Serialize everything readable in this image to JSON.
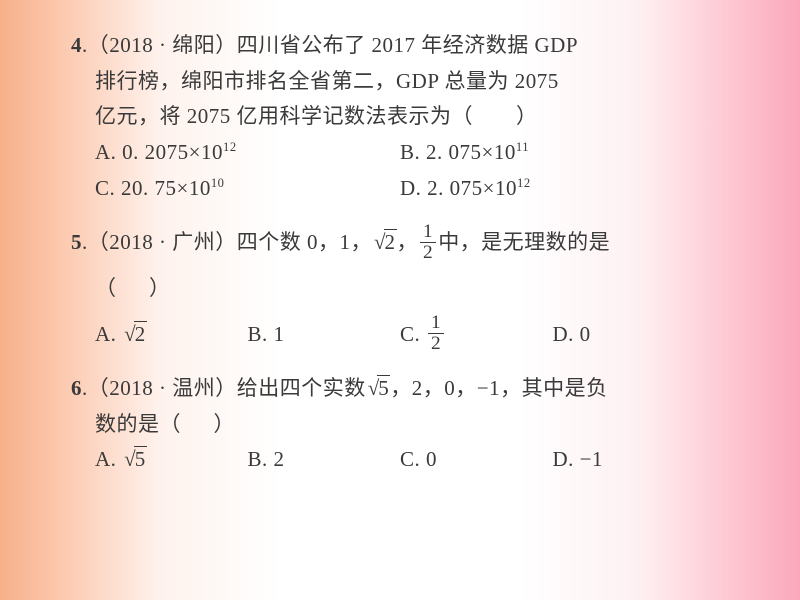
{
  "colors": {
    "text": "#3a3a3a",
    "bg_left": "#f7b08a",
    "bg_right": "#f9a8bb",
    "bg_center": "#ffffff"
  },
  "typography": {
    "font_family": "SimSun",
    "base_fontsize_pt": 16,
    "line_height": 1.7
  },
  "questions": [
    {
      "num": "4",
      "source": "（2018 · 绵阳）",
      "stem_lines": [
        "四川省公布了 2017 年经济数据 GDP",
        "排行榜，绵阳市排名全省第二，GDP 总量为 2075",
        "亿元，将 2075 亿用科学记数法表示为（　　）"
      ],
      "options": [
        {
          "label": "A",
          "text": "0. 2075×10",
          "sup": "12"
        },
        {
          "label": "B",
          "text": "2. 075×10",
          "sup": "11"
        },
        {
          "label": "C",
          "text": "20. 75×10",
          "sup": "10"
        },
        {
          "label": "D",
          "text": "2. 075×10",
          "sup": "12"
        }
      ],
      "option_layout": "two"
    },
    {
      "num": "5",
      "source": "（2018 · 广州）",
      "stem_plain": "四个数 0，1，√2，1/2 中，是无理数的是",
      "options": [
        {
          "label": "A",
          "type": "sqrt",
          "value": "2"
        },
        {
          "label": "B",
          "type": "plain",
          "value": "1"
        },
        {
          "label": "C",
          "type": "frac",
          "num": "1",
          "den": "2"
        },
        {
          "label": "D",
          "type": "plain",
          "value": "0"
        }
      ],
      "option_layout": "four"
    },
    {
      "num": "6",
      "source": "（2018 · 温州）",
      "stem_plain": "给出四个实数 √5，2，0，−1，其中是负数的是（　　）",
      "options": [
        {
          "label": "A",
          "type": "sqrt",
          "value": "5"
        },
        {
          "label": "B",
          "type": "plain",
          "value": "2"
        },
        {
          "label": "C",
          "type": "plain",
          "value": "0"
        },
        {
          "label": "D",
          "type": "plain",
          "value": "−1"
        }
      ],
      "option_layout": "four"
    }
  ]
}
